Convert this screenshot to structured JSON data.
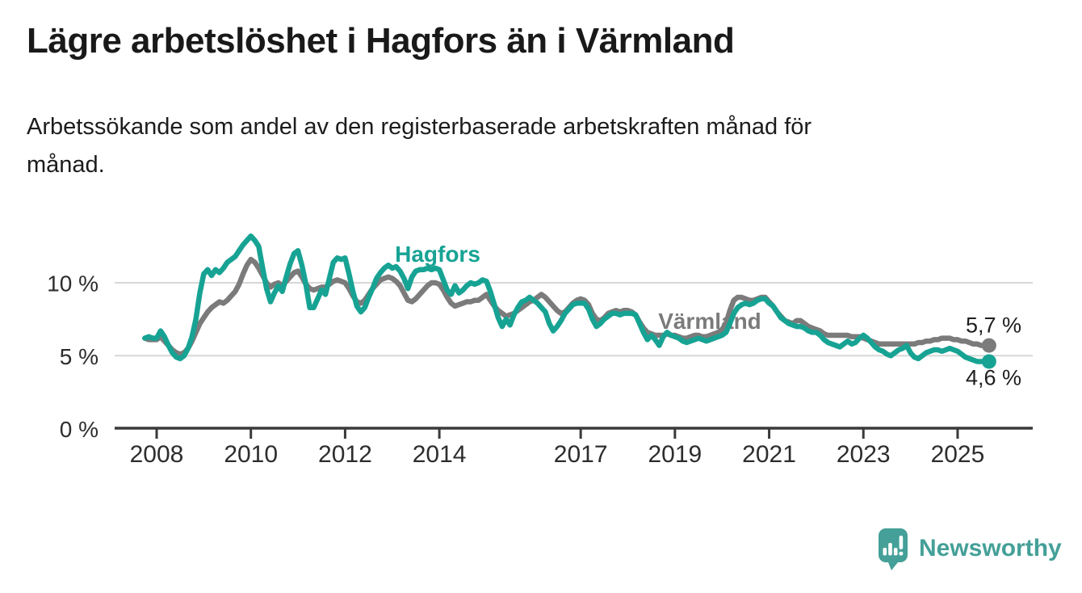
{
  "header": {
    "title": "Lägre arbetslöshet i Hagfors än i Värmland",
    "subtitle_line1": "Arbetssökande som andel av den registerbaserade arbetskraften månad för",
    "subtitle_line2": "månad.",
    "subtitle_full": "Arbetssökande som andel av den registerbaserade arbetskraften månad för månad."
  },
  "footer": {
    "brand": "Newsworthy"
  },
  "colors": {
    "hagfors": "#17A394",
    "varmland": "#7B7B7B",
    "grid": "#D7D7D7",
    "axis": "#3A3A3A",
    "tick_text": "#2D2D2D",
    "value_text": "#1E1E1E",
    "title_text": "#191919",
    "logo": "#44A098",
    "background": "#FFFFFF"
  },
  "chart_data": {
    "type": "line",
    "title": "Lägre arbetslöshet i Hagfors än i Värmland",
    "subtitle": "Arbetssökande som andel av den registerbaserade arbetskraften månad för månad.",
    "unit": "%",
    "x_unit": "month",
    "x_start": "2007-10",
    "x_end": "2025-09",
    "ylim": [
      0,
      13.5
    ],
    "grid": "horizontal",
    "legend_position": "inline-labels",
    "yticks": [
      {
        "value": 0,
        "label": "0 %"
      },
      {
        "value": 5,
        "label": "5 %"
      },
      {
        "value": 10,
        "label": "10 %"
      }
    ],
    "xticks": [
      {
        "year": 2008,
        "label": "2008"
      },
      {
        "year": 2010,
        "label": "2010"
      },
      {
        "year": 2012,
        "label": "2012"
      },
      {
        "year": 2014,
        "label": "2014"
      },
      {
        "year": 2017,
        "label": "2017"
      },
      {
        "year": 2019,
        "label": "2019"
      },
      {
        "year": 2021,
        "label": "2021"
      },
      {
        "year": 2023,
        "label": "2023"
      },
      {
        "year": 2025,
        "label": "2025"
      }
    ],
    "series": [
      {
        "name": "Hagfors",
        "color": "#17A394",
        "end_label": "4,6 %",
        "end_value": 4.6,
        "values": [
          6.2,
          6.3,
          6.2,
          6.2,
          6.7,
          6.3,
          5.7,
          5.2,
          4.9,
          4.8,
          5.0,
          5.5,
          6.3,
          7.5,
          9.3,
          10.6,
          10.9,
          10.5,
          10.9,
          10.7,
          11.0,
          11.4,
          11.6,
          11.8,
          12.2,
          12.6,
          12.9,
          13.2,
          12.9,
          12.5,
          11.0,
          9.6,
          8.7,
          9.3,
          9.8,
          9.4,
          10.4,
          11.3,
          12.0,
          12.2,
          11.2,
          9.9,
          8.3,
          8.3,
          8.9,
          9.5,
          9.2,
          10.3,
          11.4,
          11.7,
          11.6,
          11.7,
          10.6,
          9.4,
          8.4,
          8.0,
          8.3,
          9.0,
          9.6,
          10.3,
          10.7,
          11.0,
          11.2,
          11.0,
          11.1,
          10.8,
          10.3,
          9.6,
          10.4,
          10.8,
          10.9,
          10.9,
          11.0,
          10.9,
          11.0,
          10.9,
          10.2,
          9.5,
          9.2,
          9.8,
          9.3,
          9.5,
          9.8,
          10.0,
          9.9,
          10.0,
          10.2,
          10.1,
          9.4,
          8.5,
          7.6,
          7.0,
          7.5,
          7.1,
          7.8,
          8.3,
          8.7,
          8.8,
          9.0,
          8.8,
          8.6,
          8.3,
          8.0,
          7.2,
          6.7,
          7.0,
          7.4,
          7.9,
          8.2,
          8.5,
          8.6,
          8.6,
          8.6,
          8.2,
          7.5,
          7.0,
          7.2,
          7.5,
          7.7,
          7.9,
          7.9,
          7.8,
          7.9,
          7.9,
          7.9,
          7.8,
          7.2,
          6.6,
          6.1,
          6.4,
          6.1,
          5.7,
          6.3,
          6.6,
          6.4,
          6.3,
          6.2,
          6.0,
          5.9,
          6.0,
          6.1,
          6.2,
          6.1,
          6.0,
          6.1,
          6.2,
          6.3,
          6.4,
          6.6,
          7.2,
          7.9,
          8.3,
          8.5,
          8.6,
          8.5,
          8.6,
          8.8,
          8.9,
          8.9,
          8.6,
          8.4,
          8.0,
          7.6,
          7.4,
          7.2,
          7.1,
          7.0,
          7.0,
          6.9,
          6.7,
          6.6,
          6.6,
          6.4,
          6.1,
          5.9,
          5.8,
          5.7,
          5.6,
          5.8,
          6.0,
          5.8,
          5.9,
          6.2,
          6.4,
          6.2,
          5.9,
          5.6,
          5.4,
          5.3,
          5.1,
          5.0,
          5.2,
          5.4,
          5.5,
          5.7,
          5.2,
          4.9,
          4.8,
          5.0,
          5.2,
          5.3,
          5.4,
          5.4,
          5.3,
          5.4,
          5.5,
          5.4,
          5.3,
          5.1,
          4.9,
          4.8,
          4.7,
          4.6,
          4.6,
          4.6,
          4.6
        ]
      },
      {
        "name": "Värmland",
        "color": "#7B7B7B",
        "end_label": "5,7 %",
        "end_value": 5.7,
        "values": [
          6.2,
          6.1,
          6.1,
          6.1,
          6.3,
          6.0,
          5.7,
          5.4,
          5.2,
          5.1,
          5.2,
          5.5,
          6.0,
          6.6,
          7.2,
          7.6,
          8.0,
          8.3,
          8.5,
          8.7,
          8.6,
          8.8,
          9.1,
          9.4,
          9.9,
          10.6,
          11.2,
          11.6,
          11.4,
          11.0,
          10.5,
          10.0,
          9.7,
          9.9,
          10.0,
          9.8,
          10.1,
          10.4,
          10.7,
          10.8,
          10.4,
          9.9,
          9.6,
          9.5,
          9.6,
          9.7,
          9.7,
          9.9,
          10.1,
          10.2,
          10.1,
          10.0,
          9.6,
          9.1,
          8.7,
          8.6,
          8.8,
          9.2,
          9.6,
          9.9,
          10.2,
          10.3,
          10.4,
          10.3,
          10.1,
          9.8,
          9.3,
          8.8,
          8.7,
          8.9,
          9.2,
          9.5,
          9.8,
          10.0,
          10.0,
          9.9,
          9.5,
          9.0,
          8.6,
          8.4,
          8.5,
          8.6,
          8.7,
          8.7,
          8.8,
          8.8,
          9.0,
          9.2,
          8.8,
          8.4,
          8.1,
          7.9,
          7.7,
          7.8,
          7.9,
          8.1,
          8.3,
          8.5,
          8.7,
          8.8,
          9.0,
          9.2,
          9.0,
          8.7,
          8.4,
          8.1,
          7.9,
          8.0,
          8.3,
          8.6,
          8.8,
          8.9,
          8.8,
          8.5,
          7.9,
          7.5,
          7.4,
          7.6,
          7.9,
          8.0,
          8.1,
          8.0,
          8.1,
          8.1,
          8.0,
          7.8,
          7.3,
          6.9,
          6.6,
          6.5,
          6.4,
          6.4,
          6.4,
          6.5,
          6.4,
          6.4,
          6.3,
          6.2,
          6.2,
          6.3,
          6.4,
          6.4,
          6.3,
          6.3,
          6.4,
          6.5,
          6.6,
          6.8,
          7.2,
          8.1,
          8.8,
          9.0,
          9.0,
          8.9,
          8.8,
          8.8,
          8.9,
          9.0,
          9.0,
          8.7,
          8.4,
          8.0,
          7.7,
          7.4,
          7.3,
          7.2,
          7.4,
          7.4,
          7.2,
          7.0,
          6.9,
          6.8,
          6.7,
          6.5,
          6.4,
          6.4,
          6.4,
          6.4,
          6.4,
          6.4,
          6.3,
          6.3,
          6.3,
          6.2,
          6.1,
          6.0,
          5.9,
          5.8,
          5.8,
          5.8,
          5.8,
          5.8,
          5.8,
          5.8,
          5.8,
          5.8,
          5.8,
          5.9,
          5.9,
          6.0,
          6.0,
          6.1,
          6.1,
          6.2,
          6.2,
          6.2,
          6.1,
          6.1,
          6.0,
          6.0,
          5.9,
          5.8,
          5.8,
          5.7,
          5.7,
          5.7
        ]
      }
    ]
  }
}
